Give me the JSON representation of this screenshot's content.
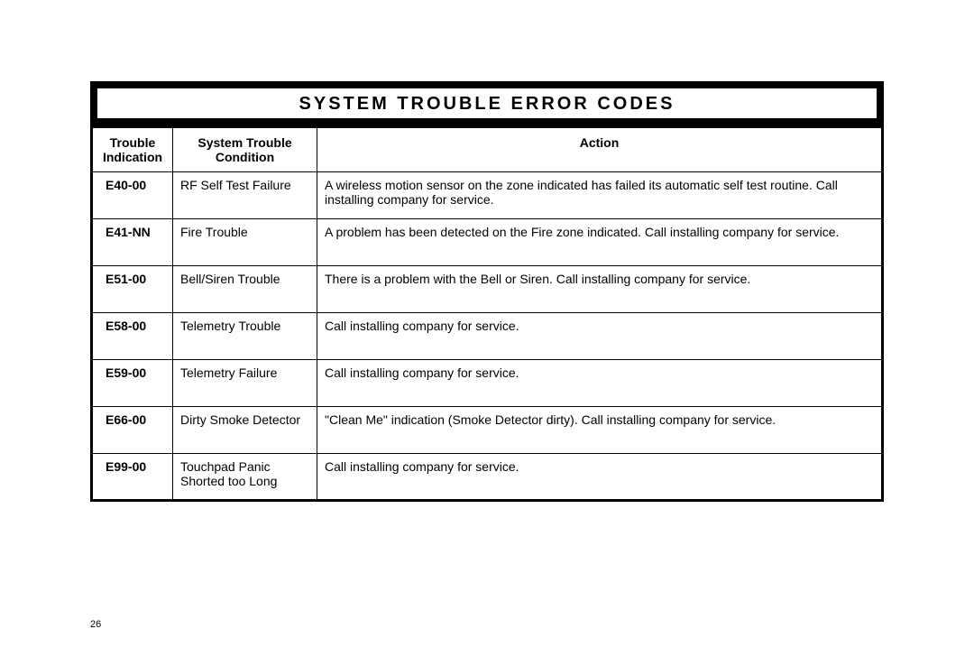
{
  "title": "System Trouble Error Codes",
  "page_number": "26",
  "columns": [
    "Trouble Indication",
    "System Trouble Condition",
    "Action"
  ],
  "rows": [
    {
      "code": "E40-00",
      "condition": "RF Self Test Failure",
      "action": "A wireless motion sensor on the zone indicated has failed its automatic self test routine. Call installing company for service."
    },
    {
      "code": "E41-NN",
      "condition": "Fire Trouble",
      "action": "A problem has been detected on the Fire zone indicated.  Call installing company for service."
    },
    {
      "code": "E51-00",
      "condition": "Bell/Siren Trouble",
      "action": "There is a problem with the Bell or Siren.  Call installing company for service."
    },
    {
      "code": "E58-00",
      "condition": "Telemetry Trouble",
      "action": "Call installing company for service."
    },
    {
      "code": "E59-00",
      "condition": "Telemetry Failure",
      "action": "Call installing company for service."
    },
    {
      "code": "E66-00",
      "condition": "Dirty Smoke Detector",
      "action": "\"Clean Me\" indication (Smoke Detector dirty).  Call installing company for service."
    },
    {
      "code": "E99-00",
      "condition": "Touchpad Panic Shorted too Long",
      "action": "Call installing company for service."
    }
  ]
}
